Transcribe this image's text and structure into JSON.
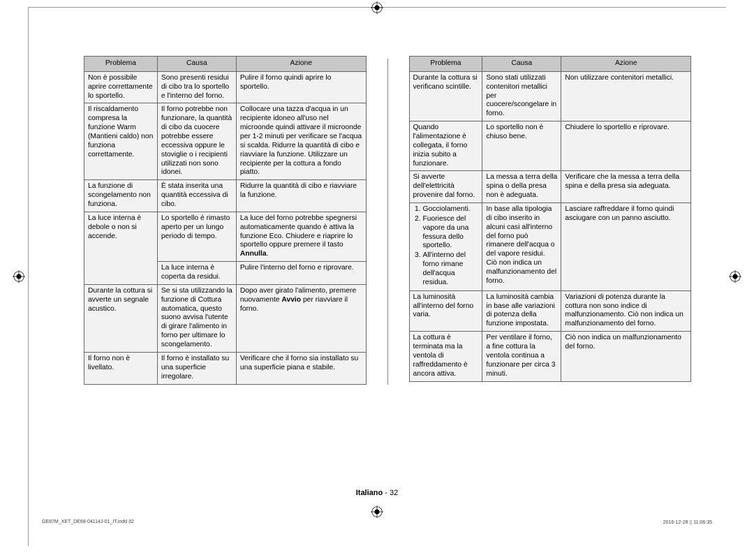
{
  "headers": {
    "c1": "Problema",
    "c2": "Causa",
    "c3": "Azione"
  },
  "left": [
    {
      "p": "Non è possibile aprire correttamente lo sportello.",
      "c": "Sono presenti residui di cibo tra lo sportello e l'interno del forno.",
      "a": "Pulire il forno quindi aprire lo sportello."
    },
    {
      "p": "Il riscaldamento compresa la funzione Warm (Mantieni caldo) non funziona correttamente.",
      "c": "Il forno potrebbe non funzionare, la quantità di cibo da cuocere potrebbe essere eccessiva oppure le stoviglie o i recipienti utilizzati non sono idonei.",
      "a": "Collocare una tazza d'acqua in un recipiente idoneo all'uso nel microonde quindi attivare il microonde per 1-2 minuti per verificare se l'acqua si scalda. Ridurre la quantità di cibo e riavviare la funzione. Utilizzare un recipiente per la cottura a fondo piatto."
    },
    {
      "p": "La funzione di scongelamento non funziona.",
      "c": "È stata inserita una quantità eccessiva di cibo.",
      "a": "Ridurre la quantità di cibo e riavviare la funzione."
    },
    {
      "p": "La luce interna è debole o non si accende.",
      "c": "Lo sportello è rimasto aperto per un lungo periodo di tempo.",
      "a": "La luce del forno potrebbe spegnersi automaticamente quando è attiva la funzione Eco. Chiudere e riaprire lo sportello oppure premere il tasto <b>Annulla</b>.",
      "rowspan": 2
    },
    {
      "c": "La luce interna è coperta da residui.",
      "a": "Pulire l'interno del forno e riprovare."
    },
    {
      "p": "Durante la cottura si avverte un segnale acustico.",
      "c": "Se si sta utilizzando la funzione di Cottura automatica, questo suono avvisa l'utente di girare l'alimento in forno per ultimare lo scongelamento.",
      "a": "Dopo aver girato l'alimento, premere nuovamente <b>Avvio</b> per riavviare il forno."
    },
    {
      "p": "Il forno non è livellato.",
      "c": "Il forno è installato su una superficie irregolare.",
      "a": "Verificare che il forno sia installato su una superficie piana e stabile."
    }
  ],
  "right": [
    {
      "p": "Durante la cottura si verificano scintille.",
      "c": "Sono stati utilizzati contenitori metallici per cuocere/scongelare in forno.",
      "a": "Non utilizzare contenitori metallici."
    },
    {
      "p": "Quando l'alimentazione è collegata, il forno inizia subito a funzionare.",
      "c": "Lo sportello non è chiuso bene.",
      "a": "Chiudere lo sportello e riprovare."
    },
    {
      "p": "Si avverte dell'elettricità provenire dal forno.",
      "c": "La messa a terra della spina o della presa non è adeguata.",
      "a": "Verificare che la messa a terra della spina e della presa sia adeguata."
    },
    {
      "p_list": [
        "Gocciolamenti.",
        "Fuoriesce del vapore da una fessura dello sportello.",
        "All'interno del forno rimane dell'acqua residua."
      ],
      "c": "In base alla tipologia di cibo inserito in alcuni casi all'interno del forno può rimanere dell'acqua o del vapore residui. Ciò non indica un malfunzionamento del forno.",
      "a": "Lasciare raffreddare il forno quindi asciugare con un panno asciutto."
    },
    {
      "p": "La luminosità all'interno del forno varia.",
      "c": "La luminosità cambia in base alle variazioni di potenza della funzione impostata.",
      "a": "Variazioni di potenza durante la cottura non sono indice di malfunzionamento. Ciò non indica un malfunzionamento del forno."
    },
    {
      "p": "La cottura è terminata ma la ventola di raffreddamento è ancora attiva.",
      "c": "Per ventilare il forno, a fine cottura la ventola continua a funzionare per circa 3 minuti.",
      "a": "Ciò non indica un malfunzionamento del forno."
    }
  ],
  "footer": {
    "lang": "Italiano",
    "sep": " - ",
    "page": "32"
  },
  "imprint": {
    "left": "GE87M_XET_DE68-04114J-01_IT.indd   32",
    "right": "2016-12-28   ▯ 11:06:35"
  }
}
